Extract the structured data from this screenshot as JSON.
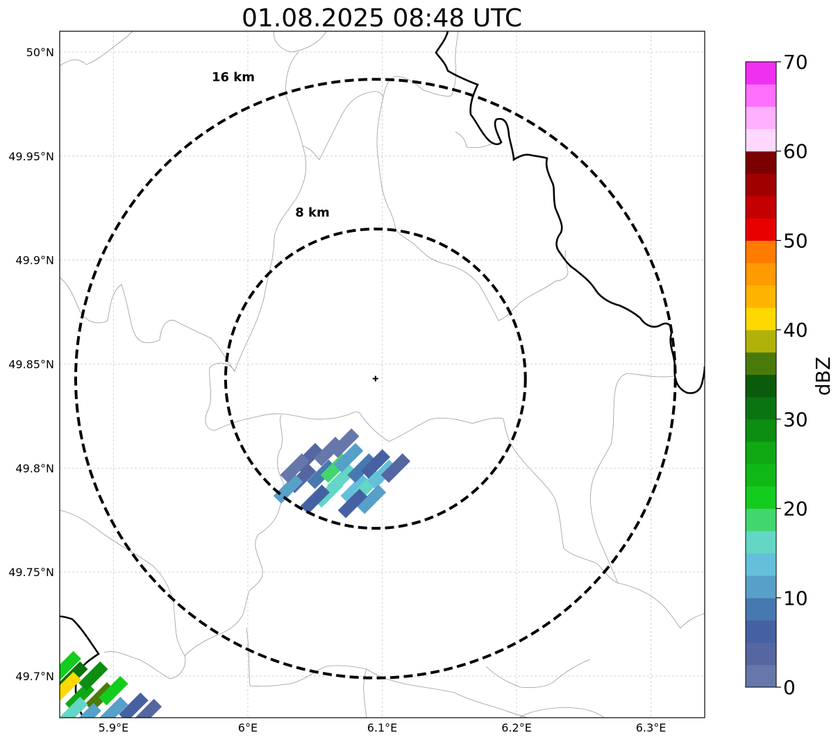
{
  "title": "01.08.2025 08:48 UTC",
  "map": {
    "lon_range": [
      5.86,
      6.34
    ],
    "lat_range": [
      49.68,
      50.01
    ],
    "lon_ticks": [
      {
        "value": 5.9,
        "label": "5.9°E"
      },
      {
        "value": 6.0,
        "label": "6°E"
      },
      {
        "value": 6.1,
        "label": "6.1°E"
      },
      {
        "value": 6.2,
        "label": "6.2°E"
      },
      {
        "value": 6.3,
        "label": "6.3°E"
      }
    ],
    "lat_ticks": [
      {
        "value": 50.0,
        "label": "50°N"
      },
      {
        "value": 49.95,
        "label": "49.95°N"
      },
      {
        "value": 49.9,
        "label": "49.9°N"
      },
      {
        "value": 49.85,
        "label": "49.85°N"
      },
      {
        "value": 49.8,
        "label": "49.8°N"
      },
      {
        "value": 49.75,
        "label": "49.75°N"
      },
      {
        "value": 49.7,
        "label": "49.7°N"
      }
    ],
    "grid": true,
    "radar_center": {
      "lon": 6.095,
      "lat": 49.843
    },
    "range_rings": [
      {
        "radius_km": 8,
        "label": "8 km"
      },
      {
        "radius_km": 16,
        "label": "16 km"
      }
    ]
  },
  "colorbar": {
    "label": "dBZ",
    "min": 0,
    "max": 70,
    "step": 2.5,
    "tick_labels": [
      "0",
      "10",
      "20",
      "30",
      "40",
      "50",
      "60",
      "70"
    ],
    "colors": [
      "#6677aa",
      "#5566a0",
      "#4661a2",
      "#4878b0",
      "#57a0c8",
      "#64bfda",
      "#63d6c6",
      "#41d66e",
      "#14cc1e",
      "#10b816",
      "#0fa812",
      "#0c8e12",
      "#0a7410",
      "#0a5c0c",
      "#4a7a0a",
      "#b0b20a",
      "#ffd800",
      "#ffb400",
      "#ff9a00",
      "#ff7c00",
      "#e80000",
      "#c40000",
      "#a00000",
      "#7c0000",
      "#ffd8ff",
      "#ffb0ff",
      "#ff70ff",
      "#f030f0"
    ]
  },
  "echoes": [
    {
      "lon": 6.055,
      "lat": 49.797,
      "dbz": 8
    },
    {
      "lon": 6.04,
      "lat": 49.795,
      "dbz": 4
    },
    {
      "lon": 6.03,
      "lat": 49.79,
      "dbz": 12
    },
    {
      "lon": 6.045,
      "lat": 49.805,
      "dbz": 3
    },
    {
      "lon": 6.06,
      "lat": 49.808,
      "dbz": 2
    },
    {
      "lon": 6.065,
      "lat": 49.8,
      "dbz": 18
    },
    {
      "lon": 6.07,
      "lat": 49.795,
      "dbz": 15
    },
    {
      "lon": 6.075,
      "lat": 49.805,
      "dbz": 11
    },
    {
      "lon": 6.08,
      "lat": 49.79,
      "dbz": 14
    },
    {
      "lon": 6.085,
      "lat": 49.8,
      "dbz": 9
    },
    {
      "lon": 6.09,
      "lat": 49.792,
      "dbz": 17
    },
    {
      "lon": 6.095,
      "lat": 49.802,
      "dbz": 6
    },
    {
      "lon": 6.1,
      "lat": 49.797,
      "dbz": 13
    },
    {
      "lon": 6.092,
      "lat": 49.785,
      "dbz": 12
    },
    {
      "lon": 6.06,
      "lat": 49.788,
      "dbz": 16
    },
    {
      "lon": 6.05,
      "lat": 49.785,
      "dbz": 5
    },
    {
      "lon": 6.11,
      "lat": 49.8,
      "dbz": 3
    },
    {
      "lon": 6.072,
      "lat": 49.812,
      "dbz": 1
    },
    {
      "lon": 6.035,
      "lat": 49.8,
      "dbz": 2
    },
    {
      "lon": 6.078,
      "lat": 49.783,
      "dbz": 7
    },
    {
      "lon": 5.87,
      "lat": 49.7,
      "dbz": 30
    },
    {
      "lon": 5.865,
      "lat": 49.695,
      "dbz": 40
    },
    {
      "lon": 5.875,
      "lat": 49.69,
      "dbz": 25
    },
    {
      "lon": 5.89,
      "lat": 49.69,
      "dbz": 35
    },
    {
      "lon": 5.9,
      "lat": 49.693,
      "dbz": 22
    },
    {
      "lon": 5.885,
      "lat": 49.7,
      "dbz": 28
    },
    {
      "lon": 5.87,
      "lat": 49.683,
      "dbz": 15
    },
    {
      "lon": 5.9,
      "lat": 49.683,
      "dbz": 10
    },
    {
      "lon": 5.915,
      "lat": 49.685,
      "dbz": 5
    },
    {
      "lon": 5.925,
      "lat": 49.682,
      "dbz": 3
    },
    {
      "lon": 5.88,
      "lat": 49.68,
      "dbz": 12
    },
    {
      "lon": 5.865,
      "lat": 49.705,
      "dbz": 20
    }
  ]
}
